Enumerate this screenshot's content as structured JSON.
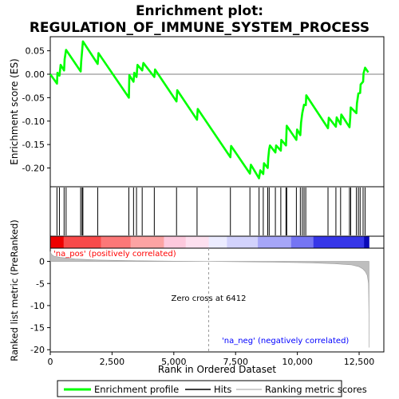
{
  "title_line1": "Enrichment plot:",
  "title_line2": "REGULATION_OF_IMMUNE_SYSTEM_PROCESS",
  "colors": {
    "profile": "#00ff00",
    "hits": "#000000",
    "metric_fill": "#bebebe",
    "pos_label": "#ff0000",
    "neg_label": "#0000ff"
  },
  "chart_data": [
    {
      "type": "line",
      "name": "enrichment",
      "ylabel": "Enrichment score (ES)",
      "xlim": [
        0,
        13500
      ],
      "ylim": [
        -0.24,
        0.08
      ],
      "yticks": [
        0.05,
        0.0,
        -0.05,
        -0.1,
        -0.15,
        -0.2
      ],
      "ytick_labels": [
        "0.05",
        "0.00",
        "-0.05",
        "-0.10",
        "-0.15",
        "-0.20"
      ],
      "grid": false,
      "points": [
        [
          0,
          0.0
        ],
        [
          270,
          -0.02
        ],
        [
          290,
          0.003
        ],
        [
          370,
          -0.003
        ],
        [
          420,
          0.02
        ],
        [
          560,
          0.008
        ],
        [
          580,
          0.032
        ],
        [
          640,
          0.052
        ],
        [
          1230,
          0.006
        ],
        [
          1250,
          0.026
        ],
        [
          1290,
          0.05
        ],
        [
          1320,
          0.07
        ],
        [
          1920,
          0.022
        ],
        [
          1950,
          0.045
        ],
        [
          3180,
          -0.05
        ],
        [
          3200,
          -0.002
        ],
        [
          3370,
          -0.016
        ],
        [
          3400,
          0.003
        ],
        [
          3490,
          -0.006
        ],
        [
          3530,
          0.02
        ],
        [
          3720,
          0.008
        ],
        [
          3770,
          0.024
        ],
        [
          4210,
          -0.006
        ],
        [
          4240,
          0.01
        ],
        [
          5110,
          -0.058
        ],
        [
          5140,
          -0.034
        ],
        [
          5940,
          -0.097
        ],
        [
          5970,
          -0.074
        ],
        [
          7290,
          -0.177
        ],
        [
          7320,
          -0.153
        ],
        [
          8080,
          -0.212
        ],
        [
          8120,
          -0.193
        ],
        [
          8450,
          -0.222
        ],
        [
          8500,
          -0.205
        ],
        [
          8620,
          -0.213
        ],
        [
          8650,
          -0.19
        ],
        [
          8800,
          -0.2
        ],
        [
          8820,
          -0.18
        ],
        [
          8860,
          -0.16
        ],
        [
          8890,
          -0.152
        ],
        [
          9110,
          -0.167
        ],
        [
          9140,
          -0.152
        ],
        [
          9330,
          -0.163
        ],
        [
          9350,
          -0.14
        ],
        [
          9540,
          -0.152
        ],
        [
          9570,
          -0.11
        ],
        [
          9960,
          -0.14
        ],
        [
          9990,
          -0.118
        ],
        [
          10120,
          -0.13
        ],
        [
          10150,
          -0.103
        ],
        [
          10200,
          -0.083
        ],
        [
          10270,
          -0.065
        ],
        [
          10340,
          -0.066
        ],
        [
          10360,
          -0.045
        ],
        [
          11240,
          -0.115
        ],
        [
          11270,
          -0.093
        ],
        [
          11560,
          -0.112
        ],
        [
          11590,
          -0.092
        ],
        [
          11750,
          -0.107
        ],
        [
          11780,
          -0.086
        ],
        [
          12110,
          -0.113
        ],
        [
          12140,
          -0.092
        ],
        [
          12160,
          -0.071
        ],
        [
          12390,
          -0.083
        ],
        [
          12410,
          -0.062
        ],
        [
          12470,
          -0.041
        ],
        [
          12540,
          -0.04
        ],
        [
          12560,
          -0.022
        ],
        [
          12660,
          -0.016
        ],
        [
          12680,
          0.002
        ],
        [
          12740,
          0.014
        ],
        [
          12870,
          0.004
        ]
      ]
    },
    {
      "type": "bar",
      "name": "hits",
      "hit_ranks": [
        270,
        370,
        560,
        640,
        1230,
        1290,
        1320,
        1920,
        3180,
        3370,
        3490,
        3720,
        4210,
        5110,
        5940,
        7290,
        8080,
        8450,
        8620,
        8800,
        8860,
        9110,
        9330,
        9540,
        9570,
        9960,
        10120,
        10200,
        10270,
        10340,
        11240,
        11560,
        11750,
        12110,
        12160,
        12390,
        12470,
        12540,
        12660,
        12740
      ]
    },
    {
      "type": "area",
      "name": "ranking_metric",
      "xlabel": "Rank in Ordered Dataset",
      "ylabel": "Ranked list metric (PreRanked)",
      "xlim": [
        0,
        13500
      ],
      "ylim": [
        -20.5,
        3.0
      ],
      "yticks": [
        0,
        -5,
        -10,
        -15,
        -20
      ],
      "ytick_labels": [
        "0",
        "-5",
        "-10",
        "-15",
        "-20"
      ],
      "xticks": [
        0,
        2500,
        5000,
        7500,
        10000,
        12500
      ],
      "xtick_labels": [
        "0",
        "2,500",
        "5,000",
        "7,500",
        "10,000",
        "12,500"
      ],
      "points": [
        [
          0,
          2.2
        ],
        [
          50,
          1.6
        ],
        [
          150,
          1.2
        ],
        [
          400,
          0.9
        ],
        [
          1000,
          0.55
        ],
        [
          2000,
          0.3
        ],
        [
          3500,
          0.15
        ],
        [
          5000,
          0.06
        ],
        [
          6412,
          0.0
        ],
        [
          7500,
          -0.05
        ],
        [
          9000,
          -0.15
        ],
        [
          10500,
          -0.3
        ],
        [
          11500,
          -0.5
        ],
        [
          12200,
          -0.8
        ],
        [
          12500,
          -1.2
        ],
        [
          12650,
          -1.7
        ],
        [
          12750,
          -2.3
        ],
        [
          12830,
          -3.2
        ],
        [
          12880,
          -5.0
        ],
        [
          12895,
          -12.0
        ],
        [
          12900,
          -19.5
        ]
      ],
      "zero_cross_label": "Zero cross at 6412",
      "zero_cross": 6412,
      "pos_label": "'na_pos' (positively correlated)",
      "neg_label": "'na_neg' (negatively correlated)"
    }
  ],
  "legend": {
    "items": [
      {
        "label": "Enrichment profile"
      },
      {
        "label": "Hits"
      },
      {
        "label": "Ranking metric scores"
      }
    ]
  }
}
